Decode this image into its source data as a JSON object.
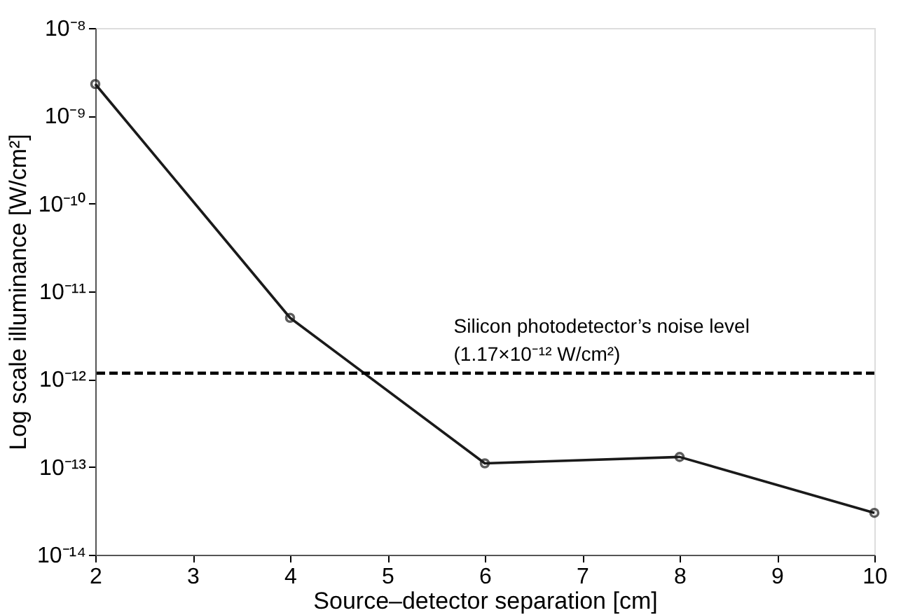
{
  "chart_data": {
    "type": "line",
    "xlabel": "Source–detector separation [cm]",
    "ylabel": "Log scale illuminance [W/cm²]",
    "x": [
      2,
      4,
      6,
      8,
      10
    ],
    "series": [
      {
        "color": "#1a1a1a",
        "values": [
          2.3e-09,
          5e-12,
          1.1e-13,
          1.3e-13,
          3e-14
        ]
      }
    ],
    "xlim": [
      2,
      10
    ],
    "xticks": [
      2,
      3,
      4,
      5,
      6,
      7,
      8,
      9,
      10
    ],
    "ylim": [
      1e-14,
      1e-08
    ],
    "log": "y",
    "yticks": [
      {
        "value": 1e-14,
        "label": "10⁻¹⁴"
      },
      {
        "value": 1e-13,
        "label": "10⁻¹³"
      },
      {
        "value": 1e-12,
        "label": "10⁻¹²"
      },
      {
        "value": 1e-11,
        "label": "10⁻¹¹"
      },
      {
        "value": 1e-10,
        "label": "10⁻¹⁰"
      },
      {
        "value": 1e-09,
        "label": "10⁻⁹"
      },
      {
        "value": 1e-08,
        "label": "10⁻⁸"
      }
    ],
    "ref_lines": [
      {
        "axis": "y",
        "value": 1.17e-12,
        "label": "Silicon photodetector’s noise level\n(1.17×10⁻¹² W/cm²)",
        "color": "#000000",
        "line_style": "dashed"
      }
    ],
    "marker": "circle",
    "line_style": "solid",
    "grid": false
  }
}
